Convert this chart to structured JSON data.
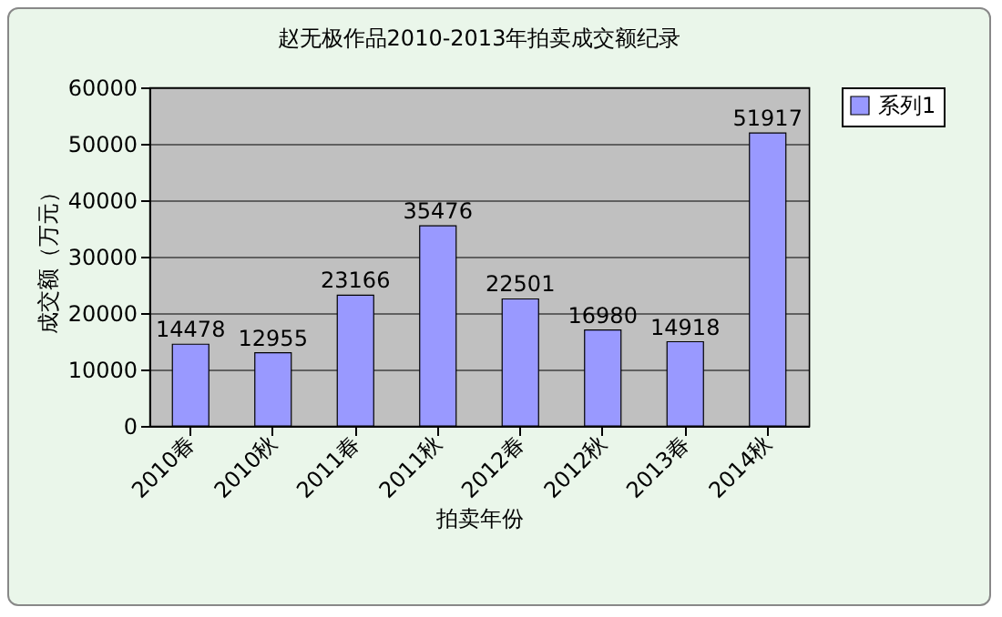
{
  "chart_data": {
    "type": "bar",
    "title": "赵无极作品2010-2013年拍卖成交额纪录",
    "xlabel": "拍卖年份",
    "ylabel": "成交额（万元）",
    "categories": [
      "2010春",
      "2010秋",
      "2011春",
      "2011秋",
      "2012春",
      "2012秋",
      "2013春",
      "2014秋"
    ],
    "series": [
      {
        "name": "系列1",
        "color": "#9999ff",
        "values": [
          14478,
          12955,
          23166,
          35476,
          22501,
          16980,
          14918,
          51917
        ]
      }
    ],
    "ylim": [
      0,
      60000
    ],
    "yticks": [
      0,
      10000,
      20000,
      30000,
      40000,
      50000,
      60000
    ],
    "grid": "y",
    "legend": "right",
    "data_labels": true
  }
}
